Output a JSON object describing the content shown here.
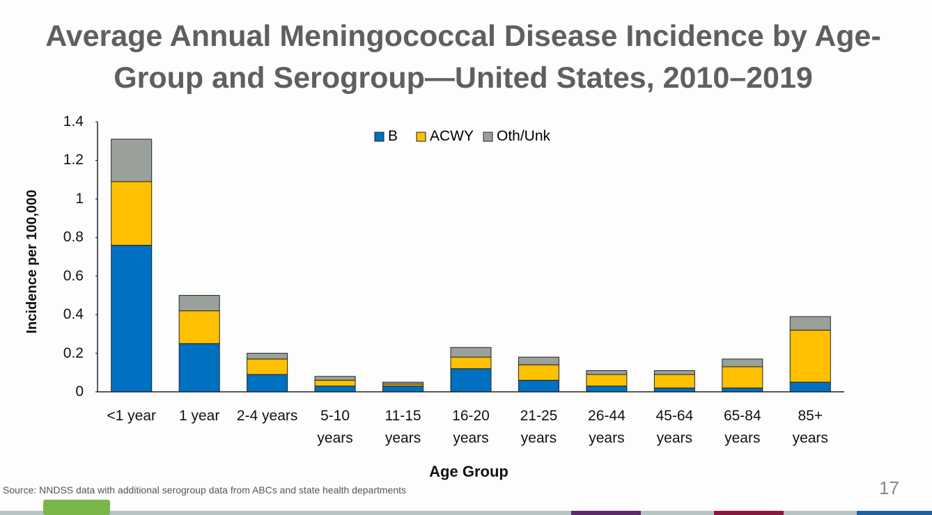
{
  "chart_data": {
    "type": "stacked_bar",
    "title": "Average Annual Meningococcal Disease Incidence by Age-Group and Serogroup—United States, 2010–2019",
    "x_label": "Age Group",
    "y_label": "Incidence per 100,000",
    "categories": [
      "<1 year",
      "1 year",
      "2-4 years",
      "5-10\nyears",
      "11-15\nyears",
      "16-20\nyears",
      "21-25\nyears",
      "26-44\nyears",
      "45-64\nyears",
      "65-84\nyears",
      "85+\nyears"
    ],
    "series": [
      {
        "name": "B",
        "color": "#0070c0",
        "values": [
          0.76,
          0.25,
          0.09,
          0.03,
          0.03,
          0.12,
          0.06,
          0.03,
          0.02,
          0.02,
          0.05
        ]
      },
      {
        "name": "ACWY",
        "color": "#ffc000",
        "values": [
          0.33,
          0.17,
          0.08,
          0.03,
          0.01,
          0.06,
          0.08,
          0.06,
          0.07,
          0.11,
          0.27
        ]
      },
      {
        "name": "Oth/Unk",
        "color": "#9aa19a",
        "values": [
          0.22,
          0.08,
          0.03,
          0.02,
          0.01,
          0.05,
          0.04,
          0.02,
          0.02,
          0.04,
          0.07
        ]
      }
    ],
    "ylim": [
      0,
      1.4
    ],
    "yticks": [
      0,
      0.2,
      0.4,
      0.6,
      0.8,
      1,
      1.2,
      1.4
    ],
    "grid": false,
    "legend": "top"
  },
  "footer": {
    "source": "Source: NNDSS data with additional serogroup data from ABCs and state health departments",
    "page_number": "17"
  }
}
